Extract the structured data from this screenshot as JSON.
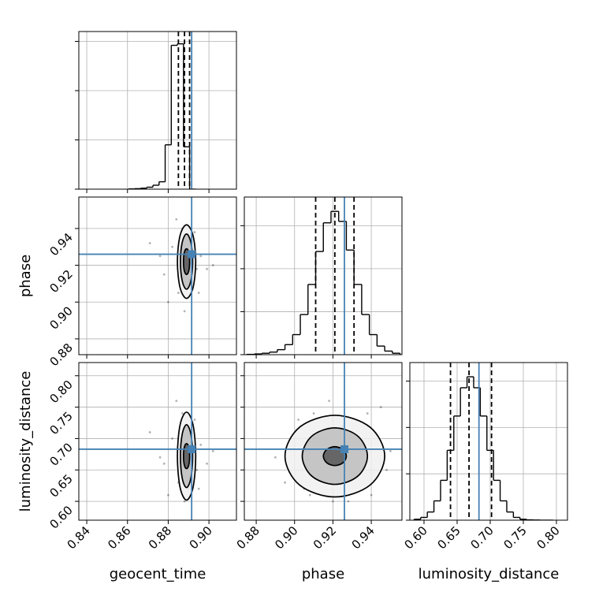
{
  "chart_data": [
    {
      "type": "histogram",
      "xlim": [
        0.8361,
        0.9135
      ],
      "xticks": [
        0.84,
        0.86,
        0.88,
        {
          "value": 0.9,
          "label": "0.90"
        }
      ],
      "show_xticklabels": false,
      "ylim": [
        0,
        3200
      ],
      "yticks": [
        0,
        1000,
        2000,
        3000
      ],
      "show_yticklabels": false,
      "grid": true,
      "bins": [
        0.8605,
        0.8635,
        0.8665,
        0.8695,
        0.8725,
        0.8755,
        0.8785,
        0.8815,
        0.8845,
        0.8875,
        0.8905,
        0.8935
      ],
      "values": [
        5,
        10,
        20,
        40,
        80,
        150,
        900,
        2920,
        2950,
        860,
        0
      ],
      "quantiles": [
        0.885,
        0.888,
        0.8905
      ],
      "truth": 0.8915,
      "color": "#000000",
      "truth_color": "#4682b4"
    },
    {
      "type": "scatter",
      "xlim": [
        0.8361,
        0.9135
      ],
      "xticks": [
        0.84,
        0.86,
        0.88,
        {
          "value": 0.9,
          "label": "0.90"
        }
      ],
      "show_xticklabels": false,
      "ylim": [
        0.8714,
        0.9571
      ],
      "yticks": [
        0.88,
        {
          "value": 0.9,
          "label": "0.90"
        },
        0.92,
        0.94
      ],
      "show_yticklabels": true,
      "ylabel": "phase",
      "grid": true,
      "x": [
        0.878,
        0.882,
        0.885,
        0.887,
        0.889,
        0.89,
        0.892,
        0.894,
        0.896,
        0.88,
        0.884,
        0.886,
        0.888,
        0.891,
        0.893,
        0.895,
        0.876,
        0.899,
        0.871,
        0.902
      ],
      "y": [
        0.915,
        0.93,
        0.905,
        0.94,
        0.922,
        0.91,
        0.935,
        0.918,
        0.925,
        0.9,
        0.945,
        0.928,
        0.895,
        0.912,
        0.938,
        0.905,
        0.925,
        0.918,
        0.932,
        0.92
      ],
      "contours": [
        {
          "x": [
            0.8935,
            0.8922,
            0.889,
            0.8858,
            0.8845,
            0.8858,
            0.889,
            0.8922
          ],
          "y": [
            0.922,
            0.9361,
            0.942,
            0.9361,
            0.922,
            0.9079,
            0.902,
            0.9079
          ]
        },
        {
          "x": [
            0.892,
            0.8911,
            0.889,
            0.8869,
            0.886,
            0.8869,
            0.889,
            0.8911
          ],
          "y": [
            0.922,
            0.9326,
            0.937,
            0.9326,
            0.922,
            0.9114,
            0.907,
            0.9114
          ]
        },
        {
          "x": [
            0.8905,
            0.8901,
            0.889,
            0.8879,
            0.8875,
            0.8879,
            0.889,
            0.8901
          ],
          "y": [
            0.922,
            0.927,
            0.929,
            0.927,
            0.922,
            0.917,
            0.915,
            0.917
          ]
        }
      ],
      "truth": [
        0.8915,
        0.926
      ],
      "color": "#000000",
      "truth_color": "#4682b4"
    },
    {
      "type": "histogram",
      "xlim": [
        0.8738,
        0.956
      ],
      "xticks": [
        0.88,
        {
          "value": 0.9,
          "label": "0.90"
        },
        0.92,
        0.94
      ],
      "show_xticklabels": false,
      "ylim": [
        0,
        1100
      ],
      "yticks": [
        0,
        300,
        600,
        900
      ],
      "show_yticklabels": false,
      "grid": true,
      "bins": [
        0.875,
        0.879,
        0.883,
        0.887,
        0.891,
        0.895,
        0.899,
        0.903,
        0.907,
        0.911,
        0.915,
        0.919,
        0.923,
        0.927,
        0.931,
        0.935,
        0.939,
        0.943,
        0.947,
        0.951,
        0.955
      ],
      "values": [
        2,
        5,
        10,
        18,
        35,
        70,
        140,
        280,
        490,
        720,
        920,
        1000,
        930,
        730,
        490,
        280,
        140,
        60,
        25,
        10
      ],
      "quantiles": [
        0.911,
        0.921,
        0.931
      ],
      "truth": 0.926,
      "color": "#000000",
      "truth_color": "#4682b4"
    },
    {
      "type": "scatter",
      "xlim": [
        0.8361,
        0.9135
      ],
      "xticks": [
        0.84,
        0.86,
        0.88,
        {
          "value": 0.9,
          "label": "0.90"
        }
      ],
      "show_xticklabels": true,
      "xlabel": "geocent_time",
      "ylim": [
        0.57,
        0.821
      ],
      "yticks": [
        {
          "value": 0.6,
          "label": "0.60"
        },
        0.65,
        {
          "value": 0.7,
          "label": "0.70"
        },
        0.75,
        {
          "value": 0.8,
          "label": "0.80"
        }
      ],
      "show_yticklabels": true,
      "ylabel": "luminosity_distance",
      "grid": true,
      "x": [
        0.878,
        0.882,
        0.885,
        0.887,
        0.889,
        0.89,
        0.892,
        0.894,
        0.896,
        0.88,
        0.884,
        0.886,
        0.888,
        0.891,
        0.893,
        0.895,
        0.876,
        0.899,
        0.871,
        0.902
      ],
      "y": [
        0.66,
        0.7,
        0.63,
        0.74,
        0.67,
        0.62,
        0.72,
        0.65,
        0.69,
        0.61,
        0.76,
        0.68,
        0.6,
        0.64,
        0.73,
        0.62,
        0.67,
        0.66,
        0.71,
        0.68
      ],
      "contours": [
        {
          "x": [
            0.8935,
            0.8922,
            0.889,
            0.8858,
            0.8845,
            0.8858,
            0.889,
            0.8922
          ],
          "y": [
            0.672,
            0.7215,
            0.742,
            0.7215,
            0.672,
            0.6225,
            0.602,
            0.6225
          ]
        },
        {
          "x": [
            0.892,
            0.8911,
            0.889,
            0.8869,
            0.886,
            0.8869,
            0.889,
            0.8911
          ],
          "y": [
            0.672,
            0.7074,
            0.722,
            0.7074,
            0.672,
            0.6366,
            0.622,
            0.6366
          ]
        },
        {
          "x": [
            0.8905,
            0.8901,
            0.889,
            0.8879,
            0.8875,
            0.8879,
            0.889,
            0.8901
          ],
          "y": [
            0.672,
            0.6861,
            0.692,
            0.6861,
            0.672,
            0.6579,
            0.652,
            0.6579
          ]
        }
      ],
      "truth": [
        0.8915,
        0.683
      ],
      "color": "#000000",
      "truth_color": "#4682b4"
    },
    {
      "type": "scatter",
      "xlim": [
        0.8738,
        0.956
      ],
      "xticks": [
        0.88,
        {
          "value": 0.9,
          "label": "0.90"
        },
        0.92,
        0.94
      ],
      "show_xticklabels": true,
      "xlabel": "phase",
      "ylim": [
        0.57,
        0.821
      ],
      "yticks": [
        0.6,
        0.65,
        0.7,
        0.75,
        0.8
      ],
      "show_yticklabels": false,
      "grid": true,
      "x": [
        0.89,
        0.898,
        0.905,
        0.91,
        0.915,
        0.92,
        0.925,
        0.93,
        0.935,
        0.94,
        0.945,
        0.95,
        0.895,
        0.902,
        0.912,
        0.928,
        0.938,
        0.948,
        0.918,
        0.908
      ],
      "y": [
        0.67,
        0.7,
        0.62,
        0.74,
        0.66,
        0.6,
        0.72,
        0.64,
        0.69,
        0.61,
        0.75,
        0.68,
        0.63,
        0.73,
        0.71,
        0.6,
        0.74,
        0.65,
        0.76,
        0.61
      ],
      "contours": [
        {
          "x": [
            0.947,
            0.9394,
            0.921,
            0.9026,
            0.895,
            0.9026,
            0.921,
            0.9394
          ],
          "y": [
            0.672,
            0.718,
            0.737,
            0.718,
            0.672,
            0.626,
            0.607,
            0.626
          ]
        },
        {
          "x": [
            0.938,
            0.933,
            0.921,
            0.909,
            0.904,
            0.909,
            0.921,
            0.933
          ],
          "y": [
            0.672,
            0.7038,
            0.717,
            0.7038,
            0.672,
            0.6402,
            0.627,
            0.6402
          ]
        },
        {
          "x": [
            0.927,
            0.9252,
            0.921,
            0.9168,
            0.915,
            0.9168,
            0.921,
            0.9252
          ],
          "y": [
            0.672,
            0.6826,
            0.687,
            0.6826,
            0.672,
            0.6614,
            0.657,
            0.6614
          ]
        }
      ],
      "truth": [
        0.926,
        0.683
      ],
      "color": "#000000",
      "truth_color": "#4682b4"
    },
    {
      "type": "histogram",
      "xlim": [
        0.5786,
        0.8167
      ],
      "xticks": [
        {
          "value": 0.6,
          "label": "0.60"
        },
        0.65,
        {
          "value": 0.7,
          "label": "0.70"
        },
        0.75,
        {
          "value": 0.8,
          "label": "0.80"
        }
      ],
      "show_xticklabels": true,
      "xlabel": "luminosity_distance",
      "ylim": [
        0,
        1020
      ],
      "yticks": [
        0,
        300,
        600,
        900
      ],
      "show_yticklabels": false,
      "grid": true,
      "bins": [
        0.585,
        0.595,
        0.605,
        0.615,
        0.625,
        0.635,
        0.645,
        0.655,
        0.665,
        0.675,
        0.685,
        0.695,
        0.705,
        0.715,
        0.725,
        0.735,
        0.745,
        0.755,
        0.765,
        0.775,
        0.785,
        0.795
      ],
      "values": [
        6,
        18,
        53,
        125,
        258,
        452,
        674,
        857,
        928,
        857,
        674,
        452,
        258,
        125,
        53,
        18,
        6,
        2,
        1,
        0,
        0
      ],
      "quantiles": [
        0.64,
        0.668,
        0.702
      ],
      "truth": 0.683,
      "color": "#000000",
      "truth_color": "#4682b4"
    }
  ]
}
